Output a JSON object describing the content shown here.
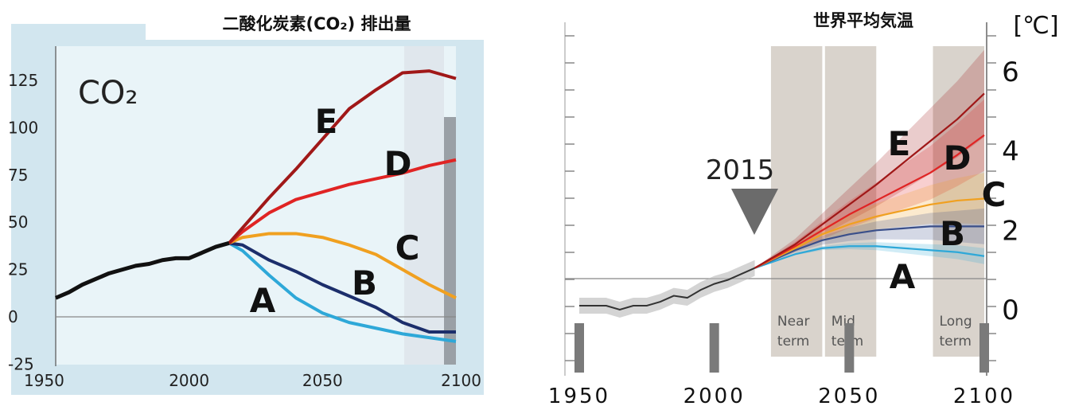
{
  "chart_data": [
    {
      "type": "line",
      "title": "二酸化炭素(CO₂) 排出量",
      "inset_label": "CO₂",
      "xlim": [
        1950,
        2100
      ],
      "ylim": [
        -25,
        140
      ],
      "x_ticks": [
        "1950",
        "2000",
        "2050",
        "2100"
      ],
      "y_ticks": [
        "125",
        "100",
        "75",
        "50",
        "25",
        "0",
        "-25"
      ],
      "historical": {
        "x": [
          1950,
          1955,
          1960,
          1965,
          1970,
          1975,
          1980,
          1985,
          1990,
          1995,
          2000,
          2005,
          2010,
          2015
        ],
        "y": [
          10,
          13,
          17,
          20,
          23,
          25,
          27,
          28,
          30,
          31,
          31,
          34,
          37,
          39
        ]
      },
      "series": [
        {
          "name": "A",
          "color": "#2ea8d8",
          "x": [
            2015,
            2020,
            2030,
            2040,
            2050,
            2060,
            2070,
            2080,
            2090,
            2100
          ],
          "y": [
            39,
            35,
            22,
            10,
            2,
            -3,
            -6,
            -9,
            -11,
            -13
          ]
        },
        {
          "name": "B",
          "color": "#1c2e6b",
          "x": [
            2015,
            2020,
            2030,
            2040,
            2050,
            2060,
            2070,
            2080,
            2090,
            2100
          ],
          "y": [
            39,
            38,
            30,
            24,
            17,
            11,
            5,
            -3,
            -8,
            -8
          ]
        },
        {
          "name": "C",
          "color": "#f0a020",
          "x": [
            2015,
            2020,
            2030,
            2040,
            2050,
            2060,
            2070,
            2080,
            2090,
            2100
          ],
          "y": [
            39,
            42,
            44,
            44,
            42,
            38,
            33,
            25,
            17,
            10
          ]
        },
        {
          "name": "D",
          "color": "#e02424",
          "x": [
            2015,
            2020,
            2030,
            2040,
            2050,
            2060,
            2070,
            2080,
            2090,
            2100
          ],
          "y": [
            39,
            45,
            55,
            62,
            66,
            70,
            73,
            76,
            80,
            83
          ]
        },
        {
          "name": "E",
          "color": "#a01818",
          "x": [
            2015,
            2020,
            2030,
            2040,
            2050,
            2060,
            2070,
            2080,
            2090,
            2100
          ],
          "y": [
            39,
            47,
            63,
            78,
            94,
            110,
            120,
            129,
            130,
            126
          ]
        }
      ]
    },
    {
      "type": "line",
      "title": "世界平均気温",
      "unit": "[℃]",
      "xlim": [
        1950,
        2100
      ],
      "ylim": [
        -1.3,
        7
      ],
      "x_ticks": [
        "1950",
        "2000",
        "2050",
        "2100"
      ],
      "y_ticks": [
        "6",
        "4",
        "2",
        "0"
      ],
      "marker_label": "2015",
      "bands": [
        {
          "label": "Near term",
          "x0": 2021,
          "x1": 2040
        },
        {
          "label": "Mid term",
          "x0": 2041,
          "x1": 2060
        },
        {
          "label": "Long term",
          "x0": 2081,
          "x1": 2100
        }
      ],
      "historical": {
        "x": [
          1950,
          1955,
          1960,
          1965,
          1970,
          1975,
          1980,
          1985,
          1990,
          1995,
          2000,
          2005,
          2010,
          2015
        ],
        "y": [
          0.1,
          0.1,
          0.1,
          0.0,
          0.1,
          0.1,
          0.2,
          0.35,
          0.3,
          0.5,
          0.65,
          0.75,
          0.9,
          1.05
        ]
      },
      "series": [
        {
          "name": "A",
          "color": "#2ea8d8",
          "x": [
            2015,
            2030,
            2040,
            2050,
            2060,
            2070,
            2080,
            2090,
            2100
          ],
          "y": [
            1.05,
            1.4,
            1.55,
            1.6,
            1.6,
            1.55,
            1.5,
            1.45,
            1.35
          ]
        },
        {
          "name": "B",
          "color": "#3a4f8a",
          "x": [
            2015,
            2030,
            2040,
            2050,
            2060,
            2070,
            2080,
            2090,
            2100
          ],
          "y": [
            1.05,
            1.5,
            1.75,
            1.9,
            2.0,
            2.05,
            2.1,
            2.1,
            2.1
          ]
        },
        {
          "name": "C",
          "color": "#f0a020",
          "x": [
            2015,
            2030,
            2040,
            2050,
            2060,
            2070,
            2080,
            2090,
            2100
          ],
          "y": [
            1.05,
            1.55,
            1.9,
            2.15,
            2.35,
            2.5,
            2.65,
            2.75,
            2.8
          ]
        },
        {
          "name": "D",
          "color": "#e02424",
          "x": [
            2015,
            2030,
            2040,
            2050,
            2060,
            2070,
            2080,
            2090,
            2100
          ],
          "y": [
            1.05,
            1.6,
            2.0,
            2.4,
            2.75,
            3.1,
            3.45,
            3.9,
            4.4
          ]
        },
        {
          "name": "E",
          "color": "#a01818",
          "x": [
            2015,
            2030,
            2040,
            2050,
            2060,
            2070,
            2080,
            2090,
            2100
          ],
          "y": [
            1.05,
            1.65,
            2.15,
            2.65,
            3.15,
            3.7,
            4.25,
            4.8,
            5.45
          ]
        }
      ]
    }
  ]
}
